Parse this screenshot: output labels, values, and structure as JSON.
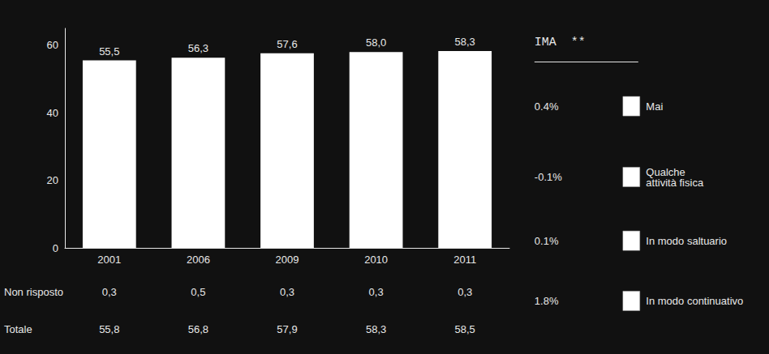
{
  "chart_data": {
    "type": "bar",
    "categories": [
      "2001",
      "2006",
      "2009",
      "2010",
      "2011"
    ],
    "values": [
      55.5,
      56.3,
      57.6,
      58.0,
      58.3
    ],
    "value_labels": [
      "55,5",
      "56,3",
      "57,6",
      "58,0",
      "58,3"
    ],
    "data_labels": true,
    "color": "#ffffff",
    "ylim": [
      0,
      65
    ],
    "yticks": [
      0,
      20,
      40,
      60
    ],
    "grid": false,
    "annotations": {
      "rows": [
        {
          "label": "Non risposto",
          "values": [
            "0,3",
            "0,5",
            "0,3",
            "0,3",
            "0,3"
          ]
        },
        {
          "label": "Totale",
          "values": [
            "55,8",
            "56,8",
            "57,9",
            "58,3",
            "58,5"
          ]
        }
      ],
      "panel": {
        "title": "IMA  **",
        "items": [
          {
            "pct": "0.4%",
            "label": "Mai"
          },
          {
            "pct": "-0.1%",
            "label": "Qualche\nattività fisica"
          },
          {
            "pct": "0.1%",
            "label": "In modo saltuario"
          },
          {
            "pct": "1.8%",
            "label": "In modo continuativo"
          }
        ]
      }
    }
  }
}
